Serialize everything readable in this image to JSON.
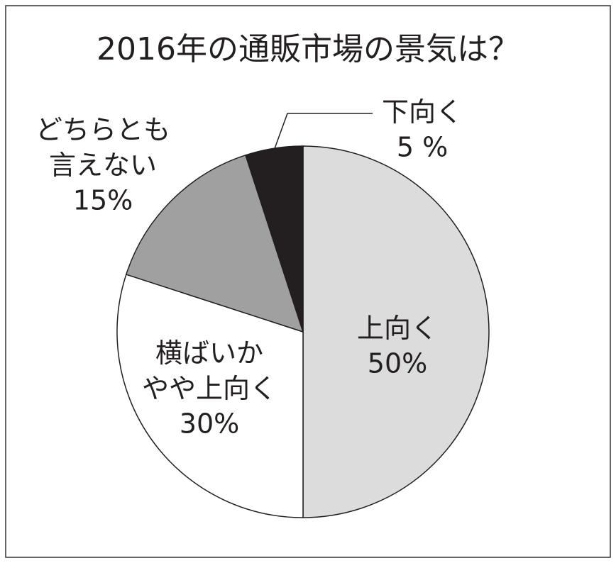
{
  "chart_data": {
    "type": "pie",
    "title": "2016年の通販市場の景気は？",
    "categories": [
      "上向く",
      "横ばいかやや上向く",
      "どちらとも言えない",
      "下向く"
    ],
    "values": [
      50,
      30,
      15,
      5
    ],
    "value_labels": [
      "50%",
      "30%",
      "15%",
      "5 %"
    ],
    "colors": [
      "#dcdcdc",
      "#ffffff",
      "#a0a0a0",
      "#231f20"
    ]
  }
}
